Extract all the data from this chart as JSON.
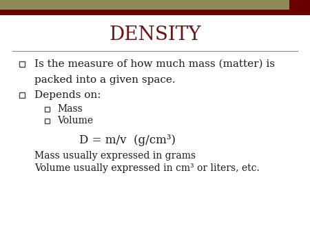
{
  "title": "DENSITY",
  "title_color": "#6B1414",
  "title_fontsize": 20,
  "bg_color": "#FFFFFF",
  "header_bar_olive": "#8B8B5A",
  "header_bar_red": "#6B0000",
  "bullet1_line1": "Is the measure of how much mass (matter) is",
  "bullet1_line2": "packed into a given space.",
  "bullet2_text": "Depends on:",
  "sub_bullet1": "Mass",
  "sub_bullet2": "Volume",
  "formula_line": "D = m/v  (g/cm³)",
  "mass_line": "Mass usually expressed in grams",
  "volume_line": "Volume usually expressed in cm³ or liters, etc.",
  "main_fontsize": 11,
  "sub_fontsize": 10,
  "formula_fontsize": 12,
  "text_color": "#1a1a1a",
  "divider_color": "#888888"
}
